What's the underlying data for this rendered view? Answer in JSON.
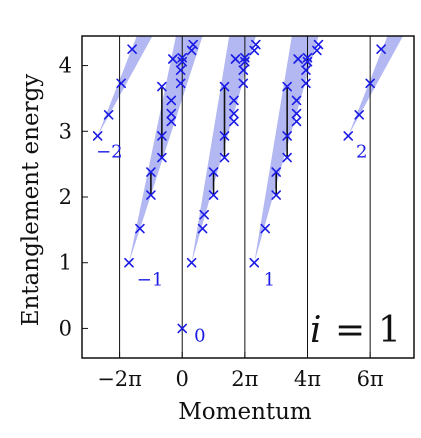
{
  "chart_data": {
    "type": "scatter",
    "xlabel": "Momentum",
    "ylabel": "Entanglement energy",
    "annotation": {
      "symbol": "i",
      "equals": "=",
      "value": "1"
    },
    "xlim": [
      -3.2,
      7.4
    ],
    "ylim": [
      -0.45,
      4.45
    ],
    "x_unit": "pi",
    "x_ticks": [
      {
        "value": -2,
        "label": "−2π"
      },
      {
        "value": 0,
        "label": "0"
      },
      {
        "value": 2,
        "label": "2π"
      },
      {
        "value": 4,
        "label": "4π"
      },
      {
        "value": 6,
        "label": "6π"
      }
    ],
    "y_ticks": [
      {
        "value": 0,
        "label": "0"
      },
      {
        "value": 1,
        "label": "1"
      },
      {
        "value": 2,
        "label": "2"
      },
      {
        "value": 3,
        "label": "3"
      },
      {
        "value": 4,
        "label": "4"
      }
    ],
    "vertical_lines": [
      -2,
      0,
      2,
      4,
      6
    ],
    "marker_color": "#1a1ae6",
    "band_color": "#b3b8f2",
    "bands": [
      {
        "apex": [
          -2.7,
          2.93
        ],
        "top_left": -1.45,
        "top_right": -0.95
      },
      {
        "apex": [
          -1.7,
          1.0
        ],
        "top_left": -0.2,
        "top_right": 0.65
      },
      {
        "apex": [
          0.3,
          1.0
        ],
        "top_left": 1.5,
        "top_right": 2.35
      },
      {
        "apex": [
          2.3,
          1.0
        ],
        "top_left": 3.5,
        "top_right": 4.35
      },
      {
        "apex": [
          5.3,
          2.93
        ],
        "top_left": 6.55,
        "top_right": 7.05
      }
    ],
    "degeneracy_bars": [
      {
        "x": -0.65,
        "y0": 2.6,
        "y1": 3.68
      },
      {
        "x": -1.0,
        "y0": 2.03,
        "y1": 2.38
      },
      {
        "x": 1.35,
        "y0": 2.6,
        "y1": 3.68
      },
      {
        "x": 1.0,
        "y0": 2.03,
        "y1": 2.38
      },
      {
        "x": 3.35,
        "y0": 2.6,
        "y1": 3.68
      },
      {
        "x": 3.0,
        "y0": 2.03,
        "y1": 2.38
      }
    ],
    "point_labels": [
      {
        "text": "−2",
        "x": -2.75,
        "y": 2.6
      },
      {
        "text": "−1",
        "x": -1.45,
        "y": 0.65
      },
      {
        "text": "0",
        "x": 0.38,
        "y": -0.2
      },
      {
        "text": "1",
        "x": 2.6,
        "y": 0.65
      },
      {
        "text": "2",
        "x": 5.55,
        "y": 2.6
      }
    ],
    "series": [
      {
        "x": [
          -2.7,
          -2.35,
          -1.95,
          -1.6,
          -1.7,
          -1.35,
          -1.0,
          -1.0,
          -0.65,
          -0.65,
          -0.65,
          -0.35,
          -0.35,
          -0.35,
          -0.3,
          -0.05,
          -0.05,
          0.0,
          0.0,
          0.3,
          0.35,
          0.0,
          0.3,
          0.65,
          0.7,
          1.0,
          1.0,
          1.35,
          1.35,
          1.35,
          1.65,
          1.65,
          1.65,
          1.7,
          1.95,
          1.95,
          2.0,
          2.0,
          2.3,
          2.35,
          2.3,
          2.65,
          3.0,
          3.0,
          3.35,
          3.35,
          3.35,
          3.65,
          3.65,
          3.65,
          3.7,
          3.95,
          3.95,
          4.0,
          4.0,
          4.3,
          4.35,
          5.3,
          5.65,
          6.0,
          6.35
        ]
      }
    ],
    "points": [
      [
        -2.7,
        2.93
      ],
      [
        -2.35,
        3.25
      ],
      [
        -1.95,
        3.73
      ],
      [
        -1.6,
        4.25
      ],
      [
        -1.7,
        1.0
      ],
      [
        -1.35,
        1.52
      ],
      [
        -1.0,
        2.03
      ],
      [
        -1.0,
        2.38
      ],
      [
        -0.65,
        2.6
      ],
      [
        -0.65,
        2.93
      ],
      [
        -0.65,
        3.68
      ],
      [
        -0.35,
        3.15
      ],
      [
        -0.35,
        3.27
      ],
      [
        -0.35,
        3.47
      ],
      [
        -0.3,
        4.1
      ],
      [
        -0.05,
        3.73
      ],
      [
        -0.05,
        3.93
      ],
      [
        0.0,
        4.06
      ],
      [
        0.0,
        4.12
      ],
      [
        0.3,
        4.23
      ],
      [
        0.35,
        4.32
      ],
      [
        0.0,
        0.0
      ],
      [
        0.3,
        1.0
      ],
      [
        0.65,
        1.52
      ],
      [
        0.7,
        1.73
      ],
      [
        1.0,
        2.03
      ],
      [
        1.0,
        2.38
      ],
      [
        1.35,
        2.6
      ],
      [
        1.35,
        2.93
      ],
      [
        1.35,
        3.68
      ],
      [
        1.65,
        3.15
      ],
      [
        1.65,
        3.27
      ],
      [
        1.65,
        3.47
      ],
      [
        1.7,
        4.1
      ],
      [
        1.95,
        3.73
      ],
      [
        1.95,
        3.93
      ],
      [
        2.0,
        4.06
      ],
      [
        2.0,
        4.12
      ],
      [
        2.3,
        4.23
      ],
      [
        2.35,
        4.32
      ],
      [
        2.3,
        1.0
      ],
      [
        2.65,
        1.52
      ],
      [
        3.0,
        2.03
      ],
      [
        3.0,
        2.38
      ],
      [
        3.35,
        2.6
      ],
      [
        3.35,
        2.93
      ],
      [
        3.35,
        3.68
      ],
      [
        3.65,
        3.15
      ],
      [
        3.65,
        3.27
      ],
      [
        3.65,
        3.47
      ],
      [
        3.7,
        4.1
      ],
      [
        3.95,
        3.73
      ],
      [
        3.95,
        3.93
      ],
      [
        4.0,
        4.06
      ],
      [
        4.0,
        4.12
      ],
      [
        4.3,
        4.23
      ],
      [
        4.35,
        4.32
      ],
      [
        5.3,
        2.93
      ],
      [
        5.65,
        3.25
      ],
      [
        6.0,
        3.73
      ],
      [
        6.35,
        4.25
      ]
    ]
  }
}
